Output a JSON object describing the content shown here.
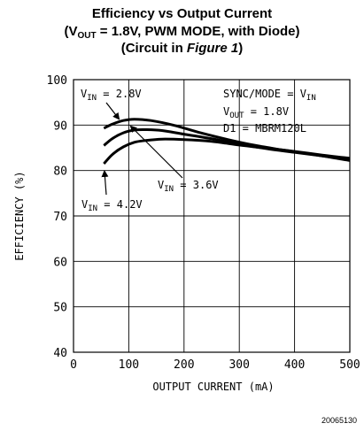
{
  "header": {
    "title_line1": "Efficiency vs Output Current",
    "title_line2_prefix": "(V",
    "title_line2_sub": "OUT",
    "title_line2_suffix": " = 1.8V, PWM MODE, with Diode)",
    "title_line3_prefix": "(Circuit in ",
    "title_line3_italic": "Figure 1",
    "title_line3_suffix": ")"
  },
  "figure_id": "20065130",
  "chart_data": {
    "type": "line",
    "xlabel": "OUTPUT CURRENT (mA)",
    "ylabel": "EFFICIENCY (%)",
    "xlim": [
      0,
      500
    ],
    "ylim": [
      40,
      100
    ],
    "x_ticks": [
      0,
      100,
      200,
      300,
      400,
      500
    ],
    "y_ticks": [
      40,
      50,
      60,
      70,
      80,
      90,
      100
    ],
    "grid": true,
    "series": [
      {
        "name": "VIN = 2.8V",
        "label_main": "V",
        "label_sub": "IN",
        "label_value": " = 2.8V",
        "x": [
          55,
          70,
          90,
          110,
          140,
          180,
          230,
          280,
          330,
          380,
          430,
          480,
          500
        ],
        "y": [
          89.3,
          90.2,
          91.0,
          91.3,
          91.0,
          90.0,
          88.3,
          86.8,
          85.5,
          84.5,
          83.6,
          82.6,
          82.2
        ]
      },
      {
        "name": "VIN = 3.6V",
        "label_main": "V",
        "label_sub": "IN",
        "label_value": " = 3.6V",
        "x": [
          55,
          70,
          90,
          110,
          130,
          160,
          200,
          250,
          300,
          350,
          400,
          450,
          500
        ],
        "y": [
          85.5,
          87.0,
          88.3,
          88.9,
          89.0,
          88.8,
          88.0,
          87.0,
          85.8,
          84.8,
          84.0,
          83.2,
          82.4
        ]
      },
      {
        "name": "VIN = 4.2V",
        "label_main": "V",
        "label_sub": "IN",
        "label_value": " = 4.2V",
        "x": [
          55,
          70,
          90,
          110,
          130,
          160,
          200,
          250,
          300,
          350,
          400,
          450,
          500
        ],
        "y": [
          81.5,
          83.5,
          85.2,
          86.2,
          86.6,
          86.9,
          86.8,
          86.4,
          85.6,
          84.9,
          84.2,
          83.4,
          82.7
        ]
      }
    ],
    "annotations": {
      "sync_mode_prefix": "SYNC/MODE = V",
      "sync_mode_sub": "IN",
      "vout_main": "V",
      "vout_sub": "OUT",
      "vout_value": " = 1.8V",
      "d1": "D1 = MBRM120L"
    }
  }
}
